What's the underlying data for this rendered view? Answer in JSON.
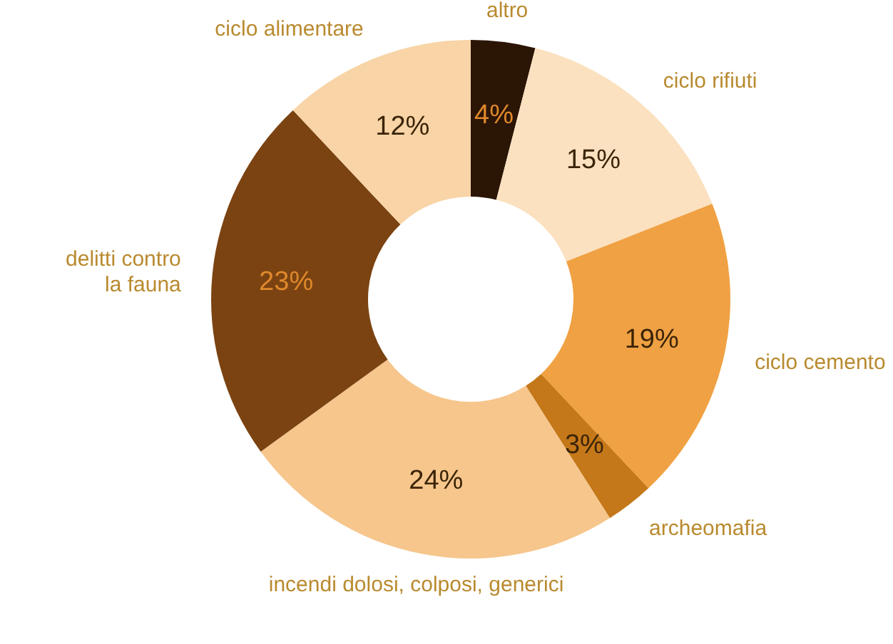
{
  "chart_data": {
    "type": "donut",
    "categories": [
      "altro",
      "ciclo rifiuti",
      "ciclo cemento",
      "archeomafia",
      "incendi dolosi, colposi, generici",
      "delitti contro\nla fauna",
      "ciclo alimentare"
    ],
    "values": [
      4,
      15,
      19,
      3,
      24,
      23,
      12
    ],
    "value_labels": [
      "4%",
      "15%",
      "19%",
      "3%",
      "24%",
      "23%",
      "12%"
    ],
    "colors": [
      "#2b1505",
      "#fbe1bf",
      "#f0a143",
      "#c57819",
      "#f6c68c",
      "#7b4311",
      "#f8d4a6"
    ],
    "legend": false
  }
}
